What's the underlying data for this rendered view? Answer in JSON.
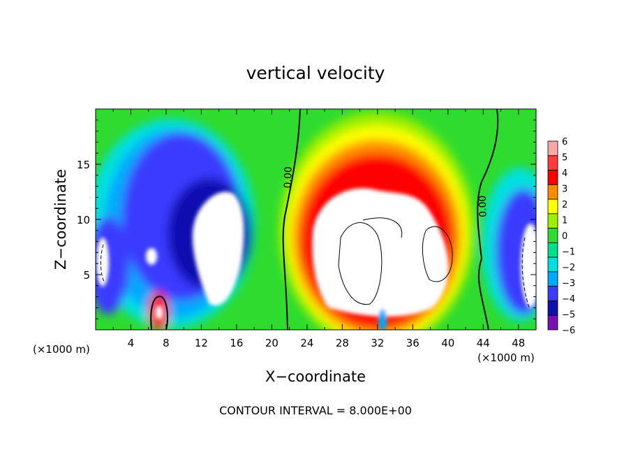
{
  "chart_data": {
    "type": "heatmap",
    "title": "vertical velocity",
    "xlabel": "X−coordinate",
    "ylabel": "Z−coordinate",
    "x_unit_left": "(×1000 m)",
    "x_unit_right": "(×1000 m)",
    "footer": "CONTOUR INTERVAL = 8.000E+00",
    "xlim": [
      0,
      50
    ],
    "ylim": [
      0,
      20
    ],
    "x_ticks": [
      4,
      8,
      12,
      16,
      20,
      24,
      28,
      32,
      36,
      40,
      44,
      48
    ],
    "x_tick_labels": [
      "4",
      "8",
      "12",
      "16",
      "20",
      "24",
      "28",
      "32",
      "36",
      "40",
      "44",
      "48"
    ],
    "y_ticks": [
      5,
      10,
      15
    ],
    "y_tick_labels": [
      "5",
      "10",
      "15"
    ],
    "colorbar": {
      "levels": [
        6,
        5,
        4,
        3,
        2,
        1,
        0,
        -1,
        -2,
        -3,
        -4,
        -5,
        -6
      ],
      "labels": [
        "6",
        "5",
        "4",
        "3",
        "2",
        "1",
        "0",
        "−1",
        "−2",
        "−3",
        "−4",
        "−5",
        "−6"
      ],
      "colors": [
        "#f9a7a7",
        "#ff3b3b",
        "#ff0000",
        "#ff8c00",
        "#ffff00",
        "#9cf000",
        "#2edb2e",
        "#00e08a",
        "#00e0e0",
        "#00a8ff",
        "#3b3bff",
        "#1010b0",
        "#7a0fb0"
      ]
    },
    "contour_labels": [
      {
        "text": "0.00",
        "x": 22.2,
        "y": 13.8,
        "angle": -88
      },
      {
        "text": "0.00",
        "x": 44.3,
        "y": 11.2,
        "angle": -92
      }
    ],
    "zero_contour_note": "thick black lines mark w = 0; thin lines are positive contours; dashed lines negative contours",
    "features": [
      {
        "name": "updraft-core",
        "x_range": [
          22,
          42
        ],
        "z_range": [
          0,
          16
        ],
        "max": 6
      },
      {
        "name": "downdraft-left",
        "x_range": [
          0,
          16
        ],
        "z_range": [
          0,
          16
        ],
        "min": -6
      },
      {
        "name": "downdraft-right",
        "x_range": [
          44,
          50
        ],
        "z_range": [
          0,
          14
        ],
        "min": -6
      },
      {
        "name": "small-updraft",
        "x_range": [
          6.5,
          8
        ],
        "z_range": [
          0,
          3
        ],
        "max": 6
      }
    ]
  }
}
